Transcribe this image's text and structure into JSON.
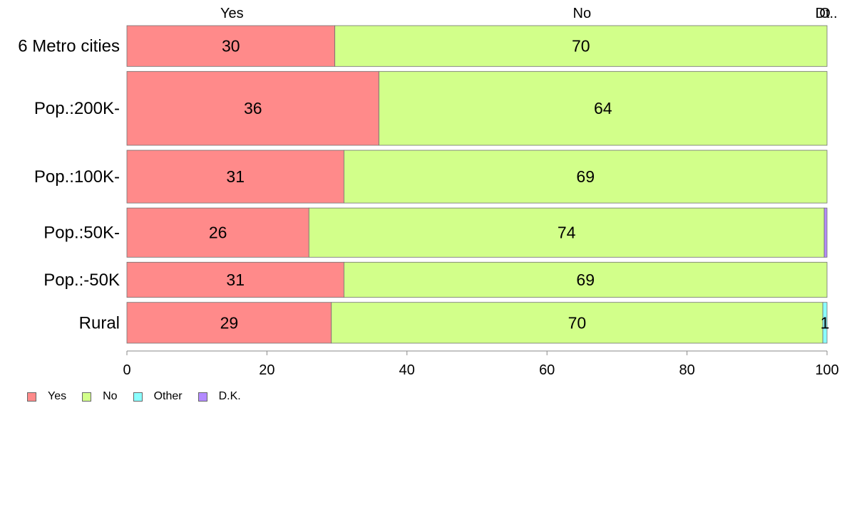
{
  "chart_data": {
    "type": "bar",
    "orientation": "horizontal",
    "stacked": true,
    "categories": [
      "6 Metro cities",
      "Pop.:200K-",
      "Pop.:100K-",
      "Pop.:50K-",
      "Pop.:-50K",
      "Rural"
    ],
    "relative_bar_heights": [
      58,
      105,
      75,
      70,
      50,
      58
    ],
    "series": [
      {
        "name": "Yes",
        "color": "#ff8a8a",
        "values": [
          29.7,
          36.0,
          31.0,
          26.0,
          31.0,
          29.2
        ]
      },
      {
        "name": "No",
        "color": "#d2ff8a",
        "values": [
          70.3,
          64.0,
          69.0,
          73.6,
          69.0,
          70.2
        ]
      },
      {
        "name": "Other",
        "color": "#8affff",
        "values": [
          0,
          0,
          0,
          0,
          0,
          0.6
        ]
      },
      {
        "name": "D.K.",
        "color": "#b38aff",
        "values": [
          0,
          0,
          0,
          0.4,
          0,
          0
        ]
      }
    ],
    "data_labels": [
      [
        "30",
        "70",
        "",
        ""
      ],
      [
        "36",
        "64",
        "",
        ""
      ],
      [
        "31",
        "69",
        "",
        ""
      ],
      [
        "26",
        "74",
        "",
        ""
      ],
      [
        "31",
        "69",
        "",
        ""
      ],
      [
        "29",
        "70",
        "1",
        ""
      ]
    ],
    "top_labels": [
      {
        "text": "Yes",
        "x": 15
      },
      {
        "text": "No",
        "x": 65
      },
      {
        "text": "O",
        "x": 99.7
      },
      {
        "text": "Dt..",
        "x": 99.9
      }
    ],
    "xlim": [
      0,
      100
    ],
    "xticks": [
      "0",
      "20",
      "40",
      "60",
      "80",
      "100"
    ],
    "legend": {
      "position": "bottom-left",
      "entries": [
        {
          "label": "Yes",
          "color": "#ff8a8a"
        },
        {
          "label": "No",
          "color": "#d2ff8a"
        },
        {
          "label": "Other",
          "color": "#8affff"
        },
        {
          "label": "D.K.",
          "color": "#b38aff"
        }
      ]
    }
  }
}
